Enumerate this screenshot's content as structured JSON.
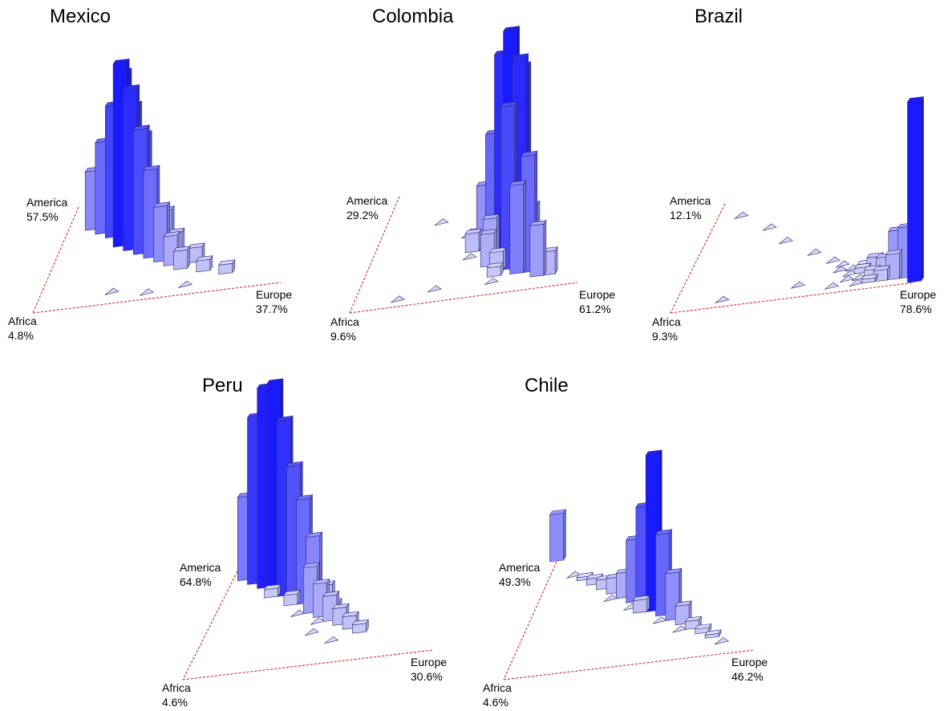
{
  "colors": {
    "bar_light": "#d6d6f7",
    "bar_dark": "#1a1aff",
    "edge_stroke": "#2a2a70",
    "triangle_edge": "#cc2a2a"
  },
  "chart_data": [
    {
      "type": "ternary-3d-histogram",
      "title": "Mexico",
      "corners": {
        "top": "America",
        "left": "Africa",
        "right": "Europe"
      },
      "means": {
        "America": "57.5%",
        "Africa": "4.8%",
        "Europe": "37.7%"
      },
      "z_max": 1.0,
      "bins": [
        {
          "america": 0.55,
          "europe": 0.25,
          "height": 1.0
        },
        {
          "america": 0.6,
          "europe": 0.25,
          "height": 0.92
        },
        {
          "america": 0.5,
          "europe": 0.3,
          "height": 0.88
        },
        {
          "america": 0.55,
          "europe": 0.3,
          "height": 0.76
        },
        {
          "america": 0.65,
          "europe": 0.2,
          "height": 0.72
        },
        {
          "america": 0.45,
          "europe": 0.35,
          "height": 0.68
        },
        {
          "america": 0.6,
          "europe": 0.3,
          "height": 0.58
        },
        {
          "america": 0.5,
          "europe": 0.35,
          "height": 0.62
        },
        {
          "america": 0.7,
          "europe": 0.15,
          "height": 0.5
        },
        {
          "america": 0.4,
          "europe": 0.4,
          "height": 0.48
        },
        {
          "america": 0.75,
          "europe": 0.1,
          "height": 0.32
        },
        {
          "america": 0.35,
          "europe": 0.45,
          "height": 0.3
        },
        {
          "america": 0.45,
          "europe": 0.45,
          "height": 0.22
        },
        {
          "america": 0.85,
          "europe": 0.1,
          "height": 0.18
        },
        {
          "america": 0.3,
          "europe": 0.5,
          "height": 0.16
        },
        {
          "america": 0.4,
          "europe": 0.5,
          "height": 0.12
        },
        {
          "america": 0.25,
          "europe": 0.55,
          "height": 0.1
        },
        {
          "america": 0.3,
          "europe": 0.6,
          "height": 0.08
        },
        {
          "america": 0.2,
          "europe": 0.65,
          "height": 0.06
        },
        {
          "america": 0.15,
          "europe": 0.75,
          "height": 0.05
        },
        {
          "america": 0.6,
          "europe": 0.35,
          "height": 0.04
        },
        {
          "america": 0.5,
          "europe": 0.45,
          "height": 0.03
        },
        {
          "america": 0.1,
          "europe": 0.3,
          "height": 0.0
        },
        {
          "america": 0.05,
          "europe": 0.45,
          "height": 0.0
        },
        {
          "america": 0.08,
          "europe": 0.6,
          "height": 0.0
        }
      ]
    },
    {
      "type": "ternary-3d-histogram",
      "title": "Colombia",
      "corners": {
        "top": "America",
        "left": "Africa",
        "right": "Europe"
      },
      "means": {
        "America": "29.2%",
        "Africa": "9.6%",
        "Europe": "61.2%"
      },
      "z_max": 1.0,
      "bins": [
        {
          "america": 0.25,
          "europe": 0.65,
          "height": 1.0
        },
        {
          "america": 0.3,
          "europe": 0.6,
          "height": 0.88
        },
        {
          "america": 0.2,
          "europe": 0.7,
          "height": 0.9
        },
        {
          "america": 0.25,
          "europe": 0.7,
          "height": 0.84
        },
        {
          "america": 0.3,
          "europe": 0.65,
          "height": 0.74
        },
        {
          "america": 0.2,
          "europe": 0.65,
          "height": 0.7
        },
        {
          "america": 0.35,
          "europe": 0.55,
          "height": 0.52
        },
        {
          "america": 0.15,
          "europe": 0.75,
          "height": 0.5
        },
        {
          "america": 0.35,
          "europe": 0.6,
          "height": 0.42
        },
        {
          "america": 0.15,
          "europe": 0.7,
          "height": 0.38
        },
        {
          "america": 0.4,
          "europe": 0.5,
          "height": 0.28
        },
        {
          "america": 0.1,
          "europe": 0.8,
          "height": 0.22
        },
        {
          "america": 0.2,
          "europe": 0.75,
          "height": 0.26
        },
        {
          "america": 0.1,
          "europe": 0.85,
          "height": 0.1
        },
        {
          "america": 0.3,
          "europe": 0.55,
          "height": 0.18
        },
        {
          "america": 0.25,
          "europe": 0.55,
          "height": 0.14
        },
        {
          "america": 0.45,
          "europe": 0.45,
          "height": 0.06
        },
        {
          "america": 0.4,
          "europe": 0.45,
          "height": 0.08
        },
        {
          "america": 0.2,
          "europe": 0.6,
          "height": 0.08
        },
        {
          "america": 0.15,
          "europe": 0.6,
          "height": 0.04
        },
        {
          "america": 0.55,
          "europe": 0.4,
          "height": 0.0
        },
        {
          "america": 0.7,
          "europe": 0.25,
          "height": 0.0
        },
        {
          "america": 0.35,
          "europe": 0.45,
          "height": 0.0
        },
        {
          "america": 0.1,
          "europe": 0.35,
          "height": 0.0
        },
        {
          "america": 0.05,
          "europe": 0.2,
          "height": 0.0
        },
        {
          "america": 0.1,
          "europe": 0.6,
          "height": 0.0
        }
      ]
    },
    {
      "type": "ternary-3d-histogram",
      "title": "Brazil",
      "corners": {
        "top": "America",
        "left": "Africa",
        "right": "Europe"
      },
      "means": {
        "America": "12.1%",
        "Africa": "9.3%",
        "Europe": "78.6%"
      },
      "z_max": 1.0,
      "bins": [
        {
          "america": 0.0,
          "europe": 1.0,
          "height": 1.0
        },
        {
          "america": 0.05,
          "europe": 0.95,
          "height": 0.28
        },
        {
          "america": 0.1,
          "europe": 0.9,
          "height": 0.24
        },
        {
          "america": 0.05,
          "europe": 0.9,
          "height": 0.14
        },
        {
          "america": 0.1,
          "europe": 0.85,
          "height": 0.1
        },
        {
          "america": 0.15,
          "europe": 0.8,
          "height": 0.08
        },
        {
          "america": 0.05,
          "europe": 0.85,
          "height": 0.06
        },
        {
          "america": 0.1,
          "europe": 0.8,
          "height": 0.04
        },
        {
          "america": 0.15,
          "europe": 0.75,
          "height": 0.03
        },
        {
          "america": 0.2,
          "europe": 0.75,
          "height": 0.02
        },
        {
          "america": 0.05,
          "europe": 0.8,
          "height": 0.02
        },
        {
          "america": 0.2,
          "europe": 0.7,
          "height": 0.0
        },
        {
          "america": 0.1,
          "europe": 0.75,
          "height": 0.0
        },
        {
          "america": 0.15,
          "europe": 0.7,
          "height": 0.0
        },
        {
          "america": 0.05,
          "europe": 0.75,
          "height": 0.0
        },
        {
          "america": 0.25,
          "europe": 0.65,
          "height": 0.0
        },
        {
          "america": 0.1,
          "europe": 0.7,
          "height": 0.0
        },
        {
          "america": 0.3,
          "europe": 0.6,
          "height": 0.0
        },
        {
          "america": 0.2,
          "europe": 0.65,
          "height": 0.0
        },
        {
          "america": 0.05,
          "europe": 0.65,
          "height": 0.0
        },
        {
          "america": 0.4,
          "europe": 0.5,
          "height": 0.0
        },
        {
          "america": 0.55,
          "europe": 0.35,
          "height": 0.0
        },
        {
          "america": 0.85,
          "europe": 0.1,
          "height": 0.0
        },
        {
          "america": 0.7,
          "europe": 0.25,
          "height": 0.0
        },
        {
          "america": 0.05,
          "europe": 0.2,
          "height": 0.0
        },
        {
          "america": 0.1,
          "europe": 0.5,
          "height": 0.0
        }
      ]
    },
    {
      "type": "ternary-3d-histogram",
      "title": "Peru",
      "corners": {
        "top": "America",
        "left": "Africa",
        "right": "Europe"
      },
      "means": {
        "America": "64.8%",
        "Africa": "4.6%",
        "Europe": "30.6%"
      },
      "z_max": 1.0,
      "bins": [
        {
          "america": 0.75,
          "europe": 0.2,
          "height": 1.0
        },
        {
          "america": 0.8,
          "europe": 0.15,
          "height": 0.96
        },
        {
          "america": 0.7,
          "europe": 0.25,
          "height": 0.84
        },
        {
          "america": 0.85,
          "europe": 0.1,
          "height": 0.8
        },
        {
          "america": 0.65,
          "europe": 0.3,
          "height": 0.64
        },
        {
          "america": 0.75,
          "europe": 0.25,
          "height": 0.52
        },
        {
          "america": 0.6,
          "europe": 0.35,
          "height": 0.5
        },
        {
          "america": 0.9,
          "europe": 0.05,
          "height": 0.4
        },
        {
          "america": 0.7,
          "europe": 0.3,
          "height": 0.44
        },
        {
          "america": 0.8,
          "europe": 0.2,
          "height": 0.3
        },
        {
          "america": 0.55,
          "europe": 0.4,
          "height": 0.34
        },
        {
          "america": 0.5,
          "europe": 0.4,
          "height": 0.22
        },
        {
          "america": 0.65,
          "europe": 0.35,
          "height": 0.2
        },
        {
          "america": 0.45,
          "europe": 0.45,
          "height": 0.16
        },
        {
          "america": 0.4,
          "europe": 0.5,
          "height": 0.12
        },
        {
          "america": 0.55,
          "europe": 0.45,
          "height": 0.1
        },
        {
          "america": 0.35,
          "europe": 0.55,
          "height": 0.08
        },
        {
          "america": 0.45,
          "europe": 0.5,
          "height": 0.06
        },
        {
          "america": 0.3,
          "europe": 0.6,
          "height": 0.06
        },
        {
          "america": 0.25,
          "europe": 0.65,
          "height": 0.04
        },
        {
          "america": 0.6,
          "europe": 0.3,
          "height": 0.05
        },
        {
          "america": 0.7,
          "europe": 0.2,
          "height": 0.04
        },
        {
          "america": 0.5,
          "europe": 0.35,
          "height": 0.0
        },
        {
          "america": 0.4,
          "europe": 0.45,
          "height": 0.0
        },
        {
          "america": 0.3,
          "europe": 0.45,
          "height": 0.0
        },
        {
          "america": 0.2,
          "europe": 0.55,
          "height": 0.0
        }
      ]
    },
    {
      "type": "ternary-3d-histogram",
      "title": "Chile",
      "corners": {
        "top": "America",
        "left": "Africa",
        "right": "Europe"
      },
      "means": {
        "America": "49.3%",
        "Africa": "4.6%",
        "Europe": "46.2%"
      },
      "z_max": 1.0,
      "bins": [
        {
          "america": 0.45,
          "europe": 0.5,
          "height": 1.0
        },
        {
          "america": 0.5,
          "europe": 0.45,
          "height": 0.64
        },
        {
          "america": 0.4,
          "europe": 0.55,
          "height": 0.52
        },
        {
          "america": 0.55,
          "europe": 0.4,
          "height": 0.4
        },
        {
          "america": 0.35,
          "europe": 0.6,
          "height": 0.3
        },
        {
          "america": 1.0,
          "europe": 0.0,
          "height": 0.3
        },
        {
          "america": 0.6,
          "europe": 0.35,
          "height": 0.16
        },
        {
          "america": 0.3,
          "europe": 0.65,
          "height": 0.12
        },
        {
          "america": 0.65,
          "europe": 0.3,
          "height": 0.1
        },
        {
          "america": 0.45,
          "europe": 0.45,
          "height": 0.08
        },
        {
          "america": 0.7,
          "europe": 0.25,
          "height": 0.06
        },
        {
          "america": 0.25,
          "europe": 0.7,
          "height": 0.05
        },
        {
          "america": 0.75,
          "europe": 0.2,
          "height": 0.04
        },
        {
          "america": 0.2,
          "europe": 0.75,
          "height": 0.03
        },
        {
          "america": 0.15,
          "europe": 0.8,
          "height": 0.02
        },
        {
          "america": 0.8,
          "europe": 0.15,
          "height": 0.02
        },
        {
          "america": 0.35,
          "europe": 0.55,
          "height": 0.0
        },
        {
          "america": 0.5,
          "europe": 0.4,
          "height": 0.0
        },
        {
          "america": 0.1,
          "europe": 0.85,
          "height": 0.0
        },
        {
          "america": 0.25,
          "europe": 0.65,
          "height": 0.0
        },
        {
          "america": 0.6,
          "europe": 0.3,
          "height": 0.0
        },
        {
          "america": 0.85,
          "europe": 0.1,
          "height": 0.0
        }
      ]
    }
  ]
}
